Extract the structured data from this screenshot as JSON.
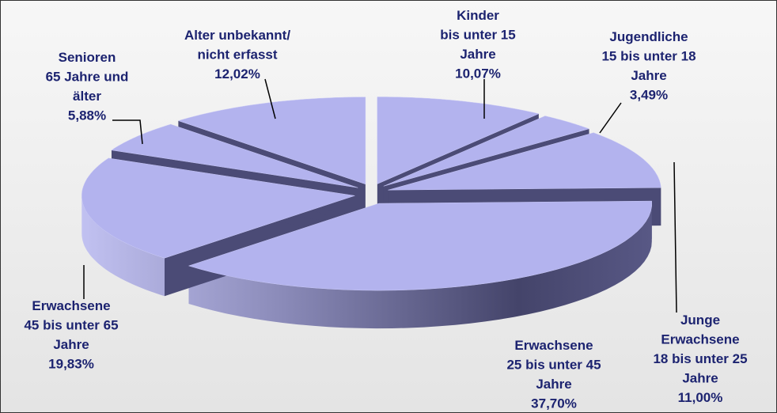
{
  "chart_data": {
    "type": "pie3d",
    "categories": [
      [
        "Kinder",
        "bis unter 15",
        "Jahre"
      ],
      [
        "Jugendliche",
        "15 bis unter 18",
        "Jahre"
      ],
      [
        "Junge",
        "Erwachsene",
        "18 bis unter 25",
        "Jahre"
      ],
      [
        "Erwachsene",
        "25 bis unter 45",
        "Jahre"
      ],
      [
        "Erwachsene",
        "45 bis unter 65",
        "Jahre"
      ],
      [
        "Senioren",
        "65 Jahre und",
        "älter"
      ],
      [
        "Alter unbekannt/",
        "nicht erfasst"
      ]
    ],
    "values": [
      10.07,
      3.49,
      11.0,
      37.7,
      19.83,
      5.88,
      12.02
    ],
    "value_labels": [
      "10,07%",
      "3,49%",
      "11,00%",
      "37,70%",
      "19,83%",
      "5,88%",
      "12,02%"
    ],
    "color": "#b3b3ee"
  }
}
